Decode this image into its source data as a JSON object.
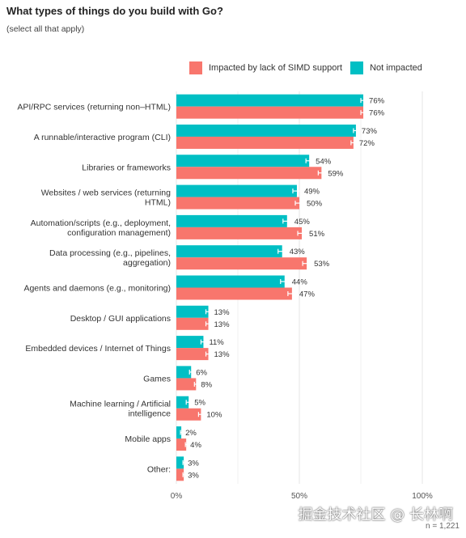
{
  "chart_data": {
    "type": "bar",
    "orientation": "horizontal",
    "title": "What types of things do you build with Go?",
    "subtitle": "(select all that apply)",
    "categories": [
      [
        "API/RPC services (returning non–HTML)"
      ],
      [
        "A runnable/interactive program (CLI)"
      ],
      [
        "Libraries or frameworks"
      ],
      [
        "Websites / web services (returning",
        "HTML)"
      ],
      [
        "Automation/scripts (e.g., deployment,",
        "configuration management)"
      ],
      [
        "Data processing (e.g., pipelines,",
        "aggregation)"
      ],
      [
        "Agents and daemons (e.g., monitoring)"
      ],
      [
        "Desktop / GUI applications"
      ],
      [
        "Embedded devices / Internet of Things"
      ],
      [
        "Games"
      ],
      [
        "Machine learning / Artificial",
        "intelligence"
      ],
      [
        "Mobile apps"
      ],
      [
        "Other:"
      ]
    ],
    "series": [
      {
        "name": "Not impacted",
        "color": "#00bfc4",
        "values": [
          76,
          73,
          54,
          49,
          45,
          43,
          44,
          13,
          11,
          6,
          5,
          2,
          3
        ],
        "labels": [
          "76%",
          "73%",
          "54%",
          "49%",
          "45%",
          "43%",
          "44%",
          "13%",
          "11%",
          "6%",
          "5%",
          "2%",
          "3%"
        ]
      },
      {
        "name": "Impacted by lack of SIMD support",
        "color": "#f8766d",
        "values": [
          76,
          72,
          59,
          50,
          51,
          53,
          47,
          13,
          13,
          8,
          10,
          4,
          3
        ],
        "labels": [
          "76%",
          "72%",
          "59%",
          "50%",
          "51%",
          "53%",
          "47%",
          "13%",
          "13%",
          "8%",
          "10%",
          "4%",
          "3%"
        ]
      }
    ],
    "legend_order": [
      "Impacted by lack of SIMD support",
      "Not impacted"
    ],
    "legend_position": "top",
    "xlim": [
      0,
      100
    ],
    "xticks": [
      0,
      50,
      100
    ],
    "xtick_labels": [
      "0%",
      "50%",
      "100%"
    ],
    "grid": true,
    "error_bars": true,
    "n_label": "n = 1,221"
  },
  "watermark": "掘金技术社区 @ 长林啊"
}
